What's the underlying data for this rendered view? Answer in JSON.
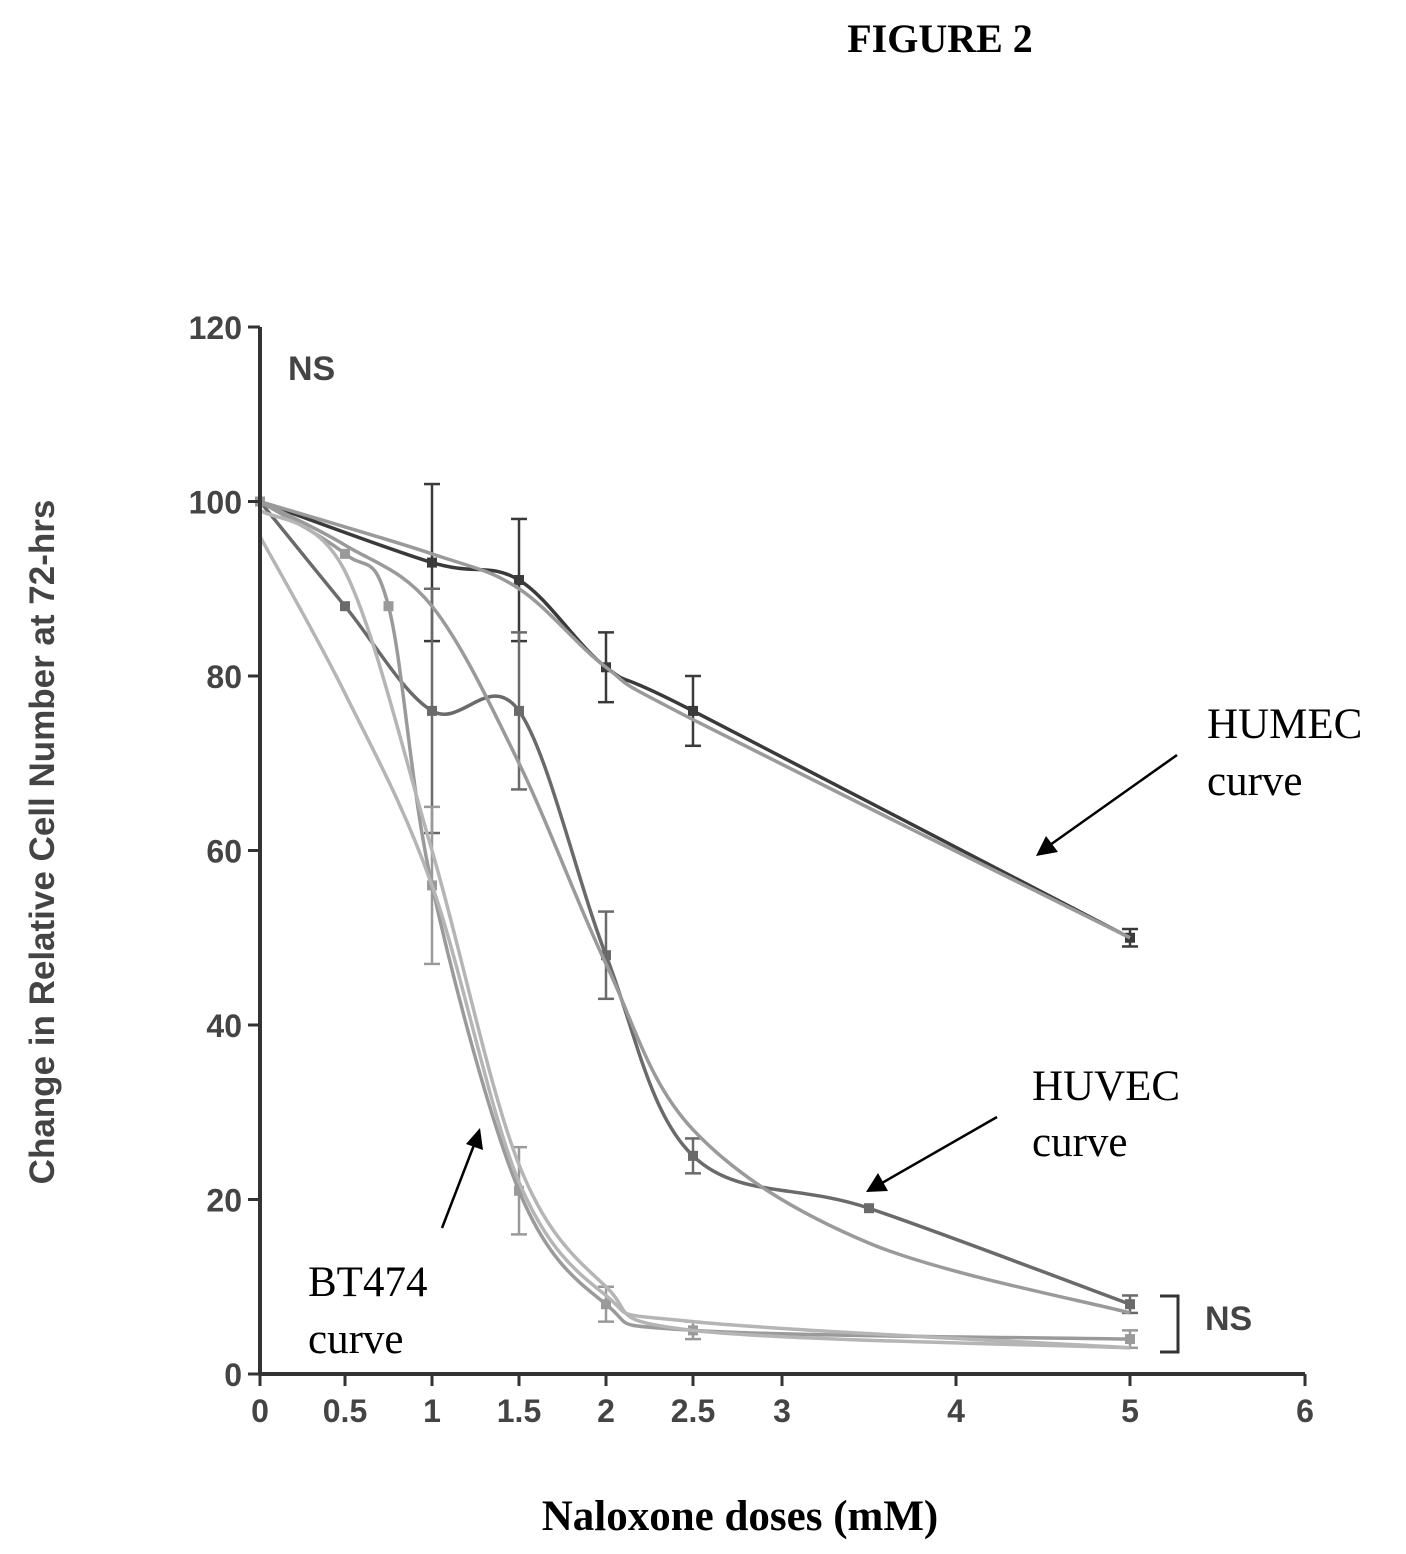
{
  "figure_title": "FIGURE 2",
  "annotations": {
    "ns_top": "NS",
    "ns_right": "NS",
    "humec_line1": "HUMEC",
    "humec_line2": "curve",
    "huvec_line1": "HUVEC",
    "huvec_line2": "curve",
    "bt474_line1": "BT474",
    "bt474_line2": "curve"
  },
  "chart_data": {
    "type": "line",
    "xlabel": "Naloxone doses (mM)",
    "ylabel": "Change in Relative Cell Number at 72-hrs",
    "xlim": [
      0,
      6
    ],
    "ylim": [
      0,
      120
    ],
    "x_ticks": [
      "0",
      "0.5",
      "1",
      "1.5",
      "2",
      "2.5",
      "3",
      "4",
      "5",
      "6"
    ],
    "x_tick_positions": [
      0,
      0.5,
      1,
      1.5,
      2,
      2.5,
      3,
      4,
      5,
      6
    ],
    "y_ticks": [
      "0",
      "20",
      "40",
      "60",
      "80",
      "100",
      "120"
    ],
    "y_tick_values": [
      0,
      20,
      40,
      60,
      80,
      100,
      120
    ],
    "colors": {
      "dark": "#3a3a3a",
      "mid": "#6a6a6a",
      "light": "#9a9a9a",
      "lighter": "#b5b5b5"
    },
    "series": [
      {
        "x": [
          0,
          1,
          1.5,
          2,
          2.5,
          5
        ],
        "y": [
          100,
          93,
          91,
          81,
          76,
          50
        ],
        "err": [
          0,
          9,
          7,
          4,
          4,
          1
        ],
        "color": "dark",
        "markers": true
      },
      {
        "x": [
          0,
          1,
          1.5,
          2,
          2.5,
          5
        ],
        "y": [
          100,
          94,
          90,
          81,
          75,
          50
        ],
        "err": [
          0,
          0,
          0,
          0,
          0,
          0
        ],
        "color": "light",
        "markers": false
      },
      {
        "x": [
          0,
          0.5,
          1,
          1.5,
          2,
          2.5,
          3.5,
          5
        ],
        "y": [
          100,
          88,
          76,
          76,
          48,
          25,
          19,
          8
        ],
        "err": [
          0,
          0,
          14,
          9,
          5,
          2,
          0,
          1
        ],
        "color": "mid",
        "markers": true
      },
      {
        "x": [
          0,
          0.5,
          1,
          1.5,
          2,
          2.5,
          3.5,
          5
        ],
        "y": [
          100,
          95,
          88,
          70,
          47,
          28,
          15,
          7
        ],
        "err": [
          0,
          0,
          0,
          0,
          0,
          0,
          0,
          0
        ],
        "color": "light",
        "markers": false
      },
      {
        "x": [
          0,
          0.5,
          0.75,
          1,
          1.5,
          2,
          2.5,
          5
        ],
        "y": [
          100,
          94,
          88,
          56,
          21,
          8,
          5,
          4
        ],
        "err": [
          0,
          0,
          0,
          9,
          5,
          2,
          1,
          1
        ],
        "color": "light",
        "markers": true
      },
      {
        "x": [
          0,
          0.5,
          1,
          1.5,
          2,
          2.5,
          5
        ],
        "y": [
          96,
          78,
          56,
          22,
          9,
          6,
          3
        ],
        "err": [
          0,
          0,
          0,
          0,
          0,
          0,
          0
        ],
        "color": "lighter",
        "markers": false
      },
      {
        "x": [
          0,
          0.5,
          1,
          1.5,
          2,
          2.5,
          5
        ],
        "y": [
          99,
          92,
          60,
          24,
          10,
          5,
          3
        ],
        "err": [
          0,
          0,
          0,
          0,
          0,
          0,
          0
        ],
        "color": "lighter",
        "markers": false
      }
    ]
  }
}
